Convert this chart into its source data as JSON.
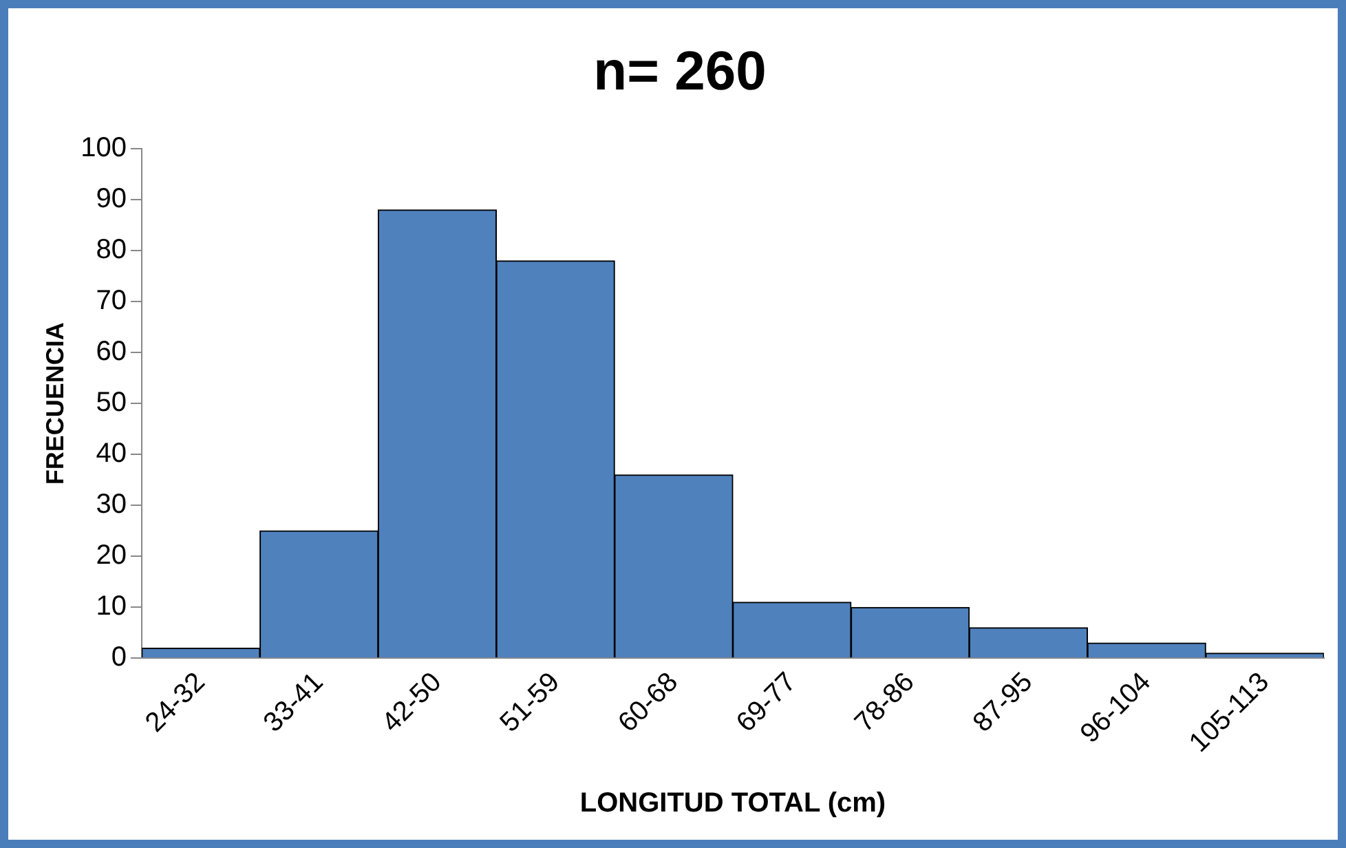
{
  "chart_data": {
    "type": "bar",
    "title": "n= 260",
    "xlabel": "LONGITUD TOTAL (cm)",
    "ylabel": "FRECUENCIA",
    "categories": [
      "24-32",
      "33-41",
      "42-50",
      "51-59",
      "60-68",
      "69-77",
      "78-86",
      "87-95",
      "96-104",
      "105-113"
    ],
    "values": [
      2,
      25,
      88,
      78,
      36,
      11,
      10,
      6,
      3,
      1
    ],
    "color": "#4f81bd",
    "ylim": [
      0,
      100
    ],
    "yticks": [
      0,
      10,
      20,
      30,
      40,
      50,
      60,
      70,
      80,
      90,
      100
    ]
  }
}
